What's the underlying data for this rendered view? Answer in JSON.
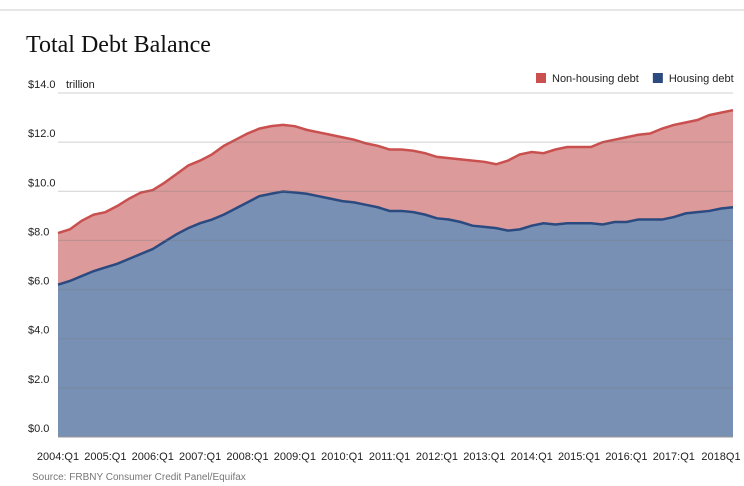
{
  "chart_data": {
    "type": "stacked_area",
    "title": "Total Debt Balance",
    "y_unit": "trillion",
    "source": "Source: FRBNY Consumer Credit Panel/Equifax",
    "categories": [
      "2004:Q1",
      null,
      null,
      null,
      "2005:Q1",
      null,
      null,
      null,
      "2006:Q1",
      null,
      null,
      null,
      "2007:Q1",
      null,
      null,
      null,
      "2008:Q1",
      null,
      null,
      null,
      "2009:Q1",
      null,
      null,
      null,
      "2010:Q1",
      null,
      null,
      null,
      "2011:Q1",
      null,
      null,
      null,
      "2012:Q1",
      null,
      null,
      null,
      "2013:Q1",
      null,
      null,
      null,
      "2014:Q1",
      null,
      null,
      null,
      "2015:Q1",
      null,
      null,
      null,
      "2016:Q1",
      null,
      null,
      null,
      "2017:Q1",
      null,
      null,
      null,
      "2018Q1",
      null
    ],
    "series": [
      {
        "name": "Housing debt",
        "color": "#7890b4",
        "line_color": "#2a4a80",
        "values": [
          6.2,
          6.35,
          6.55,
          6.75,
          6.9,
          7.05,
          7.25,
          7.45,
          7.65,
          7.95,
          8.25,
          8.5,
          8.7,
          8.85,
          9.05,
          9.3,
          9.55,
          9.8,
          9.9,
          9.99,
          9.95,
          9.9,
          9.8,
          9.7,
          9.6,
          9.55,
          9.45,
          9.35,
          9.2,
          9.2,
          9.15,
          9.05,
          8.9,
          8.85,
          8.75,
          8.6,
          8.55,
          8.5,
          8.4,
          8.45,
          8.6,
          8.7,
          8.65,
          8.7,
          8.7,
          8.7,
          8.65,
          8.75,
          8.75,
          8.85,
          8.85,
          8.85,
          8.95,
          9.1,
          9.15,
          9.2,
          9.3,
          9.35
        ]
      },
      {
        "name": "Non-housing debt",
        "color": "#dc9a9a",
        "line_color": "#c9504f",
        "values": [
          2.1,
          2.1,
          2.25,
          2.3,
          2.25,
          2.35,
          2.45,
          2.5,
          2.4,
          2.4,
          2.45,
          2.55,
          2.55,
          2.65,
          2.8,
          2.8,
          2.8,
          2.75,
          2.75,
          2.71,
          2.7,
          2.6,
          2.6,
          2.6,
          2.6,
          2.55,
          2.5,
          2.5,
          2.5,
          2.5,
          2.5,
          2.5,
          2.5,
          2.5,
          2.55,
          2.65,
          2.65,
          2.6,
          2.85,
          3.05,
          3.0,
          2.85,
          3.05,
          3.1,
          3.1,
          3.1,
          3.35,
          3.35,
          3.45,
          3.45,
          3.5,
          3.7,
          3.75,
          3.7,
          3.75,
          3.9,
          3.9,
          3.95
        ]
      }
    ],
    "ylim": [
      0,
      14
    ],
    "yticks": [
      {
        "value": 0,
        "label": "$0.0"
      },
      {
        "value": 2,
        "label": "$2.0"
      },
      {
        "value": 4,
        "label": "$4.0"
      },
      {
        "value": 6,
        "label": "$6.0"
      },
      {
        "value": 8,
        "label": "$8.0"
      },
      {
        "value": 10,
        "label": "$10.0"
      },
      {
        "value": 12,
        "label": "$12.0"
      },
      {
        "value": 14,
        "label": "$14.0"
      }
    ],
    "grid": true,
    "legend": "top-right"
  }
}
